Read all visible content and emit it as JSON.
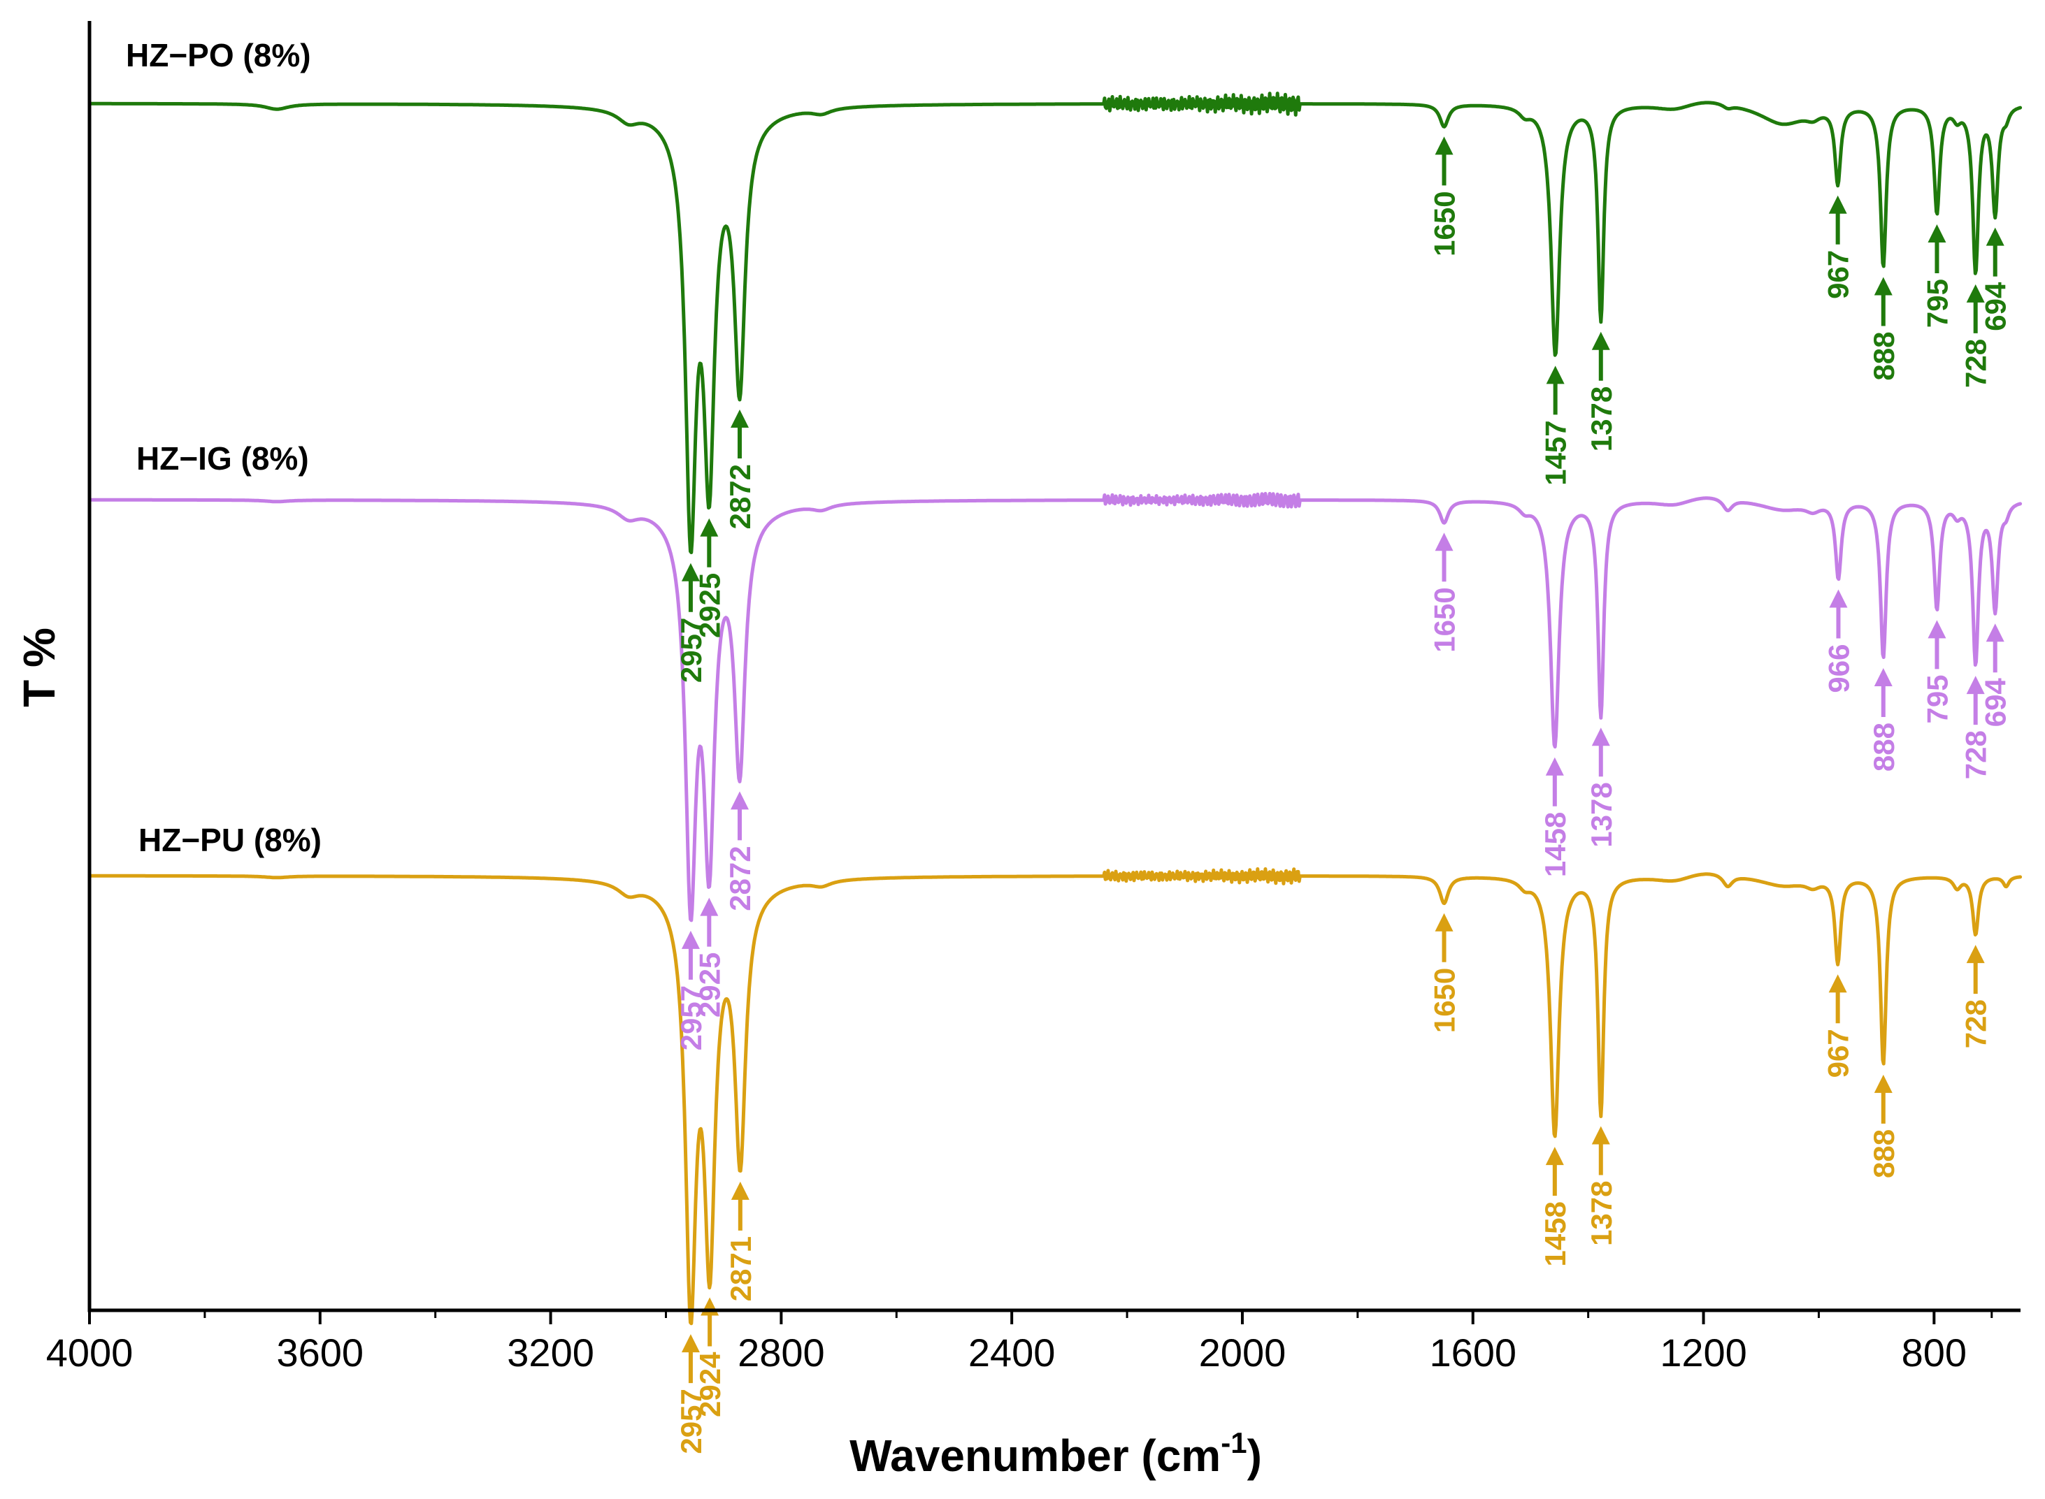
{
  "chart_data": {
    "type": "line",
    "title": "",
    "xlabel": "Wavenumber (cm",
    "xlabel_superscript": "-1",
    "xlabel_suffix": ")",
    "ylabel": "T %",
    "xlim": [
      4000,
      650
    ],
    "x_reversed": true,
    "y_ticks_shown": false,
    "grid": false,
    "x_ticks": [
      4000,
      3600,
      3200,
      2800,
      2400,
      2000,
      1600,
      1200,
      800
    ],
    "x_tick_labels": [
      "4000",
      "3600",
      "3200",
      "2800",
      "2400",
      "2000",
      "1600",
      "1200",
      "800"
    ],
    "x_minor_ticks": [
      3800,
      3400,
      3000,
      2600,
      2200,
      1800,
      1400,
      1000,
      700
    ],
    "series": [
      {
        "name": "HZ−PO (8%)",
        "color": "#1f7a0c",
        "baseline_offset": 0,
        "noise_amplitude": 1.0,
        "peaks": [
          {
            "wavenumber": 2957,
            "depth": 88,
            "label": "2957"
          },
          {
            "wavenumber": 2925,
            "depth": 73,
            "label": "2925"
          },
          {
            "wavenumber": 2872,
            "depth": 58,
            "label": "2872"
          },
          {
            "wavenumber": 1650,
            "depth": 5,
            "label": "1650"
          },
          {
            "wavenumber": 1457,
            "depth": 56,
            "label": "1457"
          },
          {
            "wavenumber": 1378,
            "depth": 48,
            "label": "1378"
          },
          {
            "wavenumber": 967,
            "depth": 17,
            "label": "967"
          },
          {
            "wavenumber": 888,
            "depth": 36,
            "label": "888"
          },
          {
            "wavenumber": 795,
            "depth": 24,
            "label": "795"
          },
          {
            "wavenumber": 728,
            "depth": 37,
            "label": "728"
          },
          {
            "wavenumber": 694,
            "depth": 24,
            "label": "694"
          }
        ]
      },
      {
        "name": "HZ−IG (8%)",
        "color": "#c47ee6",
        "baseline_offset": 1,
        "noise_amplitude": 0.7,
        "peaks": [
          {
            "wavenumber": 2957,
            "depth": 82,
            "label": "2957"
          },
          {
            "wavenumber": 2925,
            "depth": 70,
            "label": "2925"
          },
          {
            "wavenumber": 2872,
            "depth": 55,
            "label": "2872"
          },
          {
            "wavenumber": 1650,
            "depth": 5,
            "label": "1650"
          },
          {
            "wavenumber": 1458,
            "depth": 55,
            "label": "1458"
          },
          {
            "wavenumber": 1378,
            "depth": 48,
            "label": "1378"
          },
          {
            "wavenumber": 966,
            "depth": 17,
            "label": "966"
          },
          {
            "wavenumber": 888,
            "depth": 35,
            "label": "888"
          },
          {
            "wavenumber": 795,
            "depth": 24,
            "label": "795"
          },
          {
            "wavenumber": 728,
            "depth": 36,
            "label": "728"
          },
          {
            "wavenumber": 694,
            "depth": 24,
            "label": "694"
          }
        ]
      },
      {
        "name": "HZ−PU (8%)",
        "color": "#daa012",
        "baseline_offset": 2,
        "noise_amplitude": 0.7,
        "peaks": [
          {
            "wavenumber": 2957,
            "depth": 88,
            "label": "2957"
          },
          {
            "wavenumber": 2924,
            "depth": 75,
            "label": "2924"
          },
          {
            "wavenumber": 2871,
            "depth": 58,
            "label": "2871"
          },
          {
            "wavenumber": 1650,
            "depth": 6,
            "label": "1650"
          },
          {
            "wavenumber": 1458,
            "depth": 58,
            "label": "1458"
          },
          {
            "wavenumber": 1378,
            "depth": 53,
            "label": "1378"
          },
          {
            "wavenumber": 967,
            "depth": 19,
            "label": "967"
          },
          {
            "wavenumber": 888,
            "depth": 42,
            "label": "888"
          },
          {
            "wavenumber": 728,
            "depth": 13,
            "label": "728"
          }
        ]
      }
    ]
  }
}
